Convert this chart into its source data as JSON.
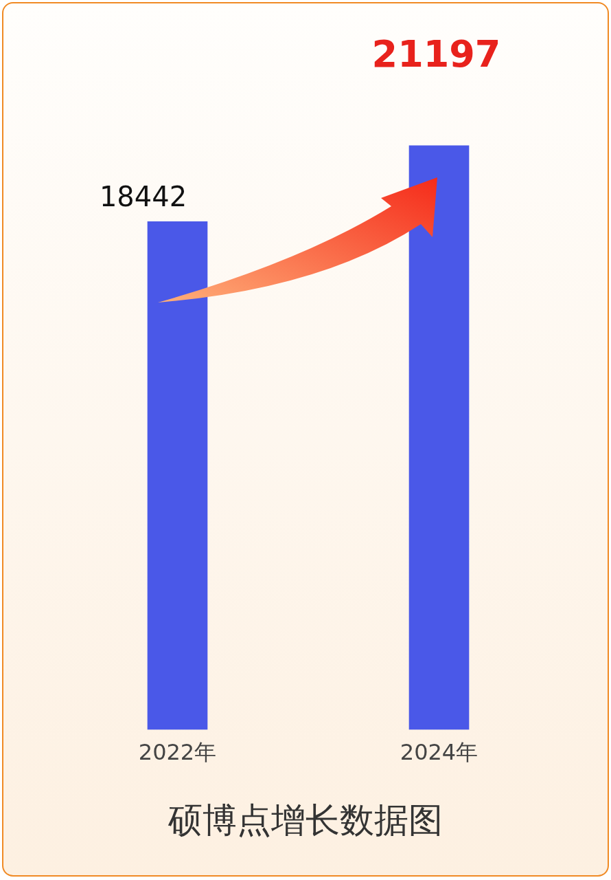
{
  "chart_data": {
    "type": "bar",
    "title": "硕博点增长数据图",
    "categories": [
      "2022年",
      "2024年"
    ],
    "values": [
      18442,
      21197
    ],
    "color": "#4a58e8",
    "tick_labels": "x",
    "data_labels": true,
    "legend": false
  }
}
